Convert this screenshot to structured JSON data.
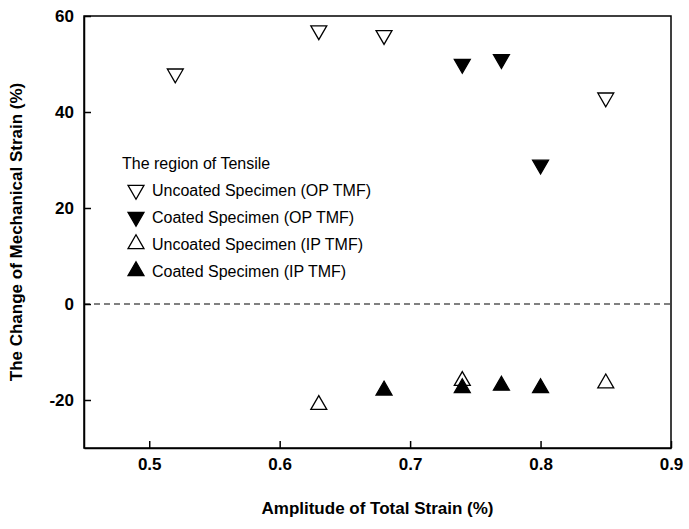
{
  "chart_data": {
    "type": "scatter",
    "x_label": "Amplitude of Total Strain (%)",
    "y_label": "The Change of Mechanical Strain (%)",
    "xlim": [
      0.45,
      0.9
    ],
    "xticks": [
      0.5,
      0.6,
      0.7,
      0.8,
      0.9
    ],
    "ylim": [
      -30,
      60
    ],
    "yticks": [
      -20,
      0,
      20,
      40,
      60
    ],
    "grid": false,
    "legend": "left",
    "legend_title": "The region of Tensile",
    "reference_line": {
      "y": 0,
      "line_style": "dashed"
    },
    "series": [
      {
        "name": "Uncoated Specimen (OP TMF)",
        "color": "#000000",
        "marker": "open-triangle-down",
        "x": [
          0.52,
          0.63,
          0.68,
          0.85
        ],
        "values": [
          48,
          57,
          56,
          43
        ]
      },
      {
        "name": "Coated Specimen (OP TMF)",
        "color": "#000000",
        "marker": "filled-triangle-down",
        "x": [
          0.74,
          0.77,
          0.8
        ],
        "values": [
          50,
          51,
          29
        ]
      },
      {
        "name": "Uncoated Specimen (IP TMF)",
        "color": "#000000",
        "marker": "open-triangle-up",
        "x": [
          0.63,
          0.74,
          0.85
        ],
        "values": [
          -21,
          -16,
          -16.5
        ]
      },
      {
        "name": "Coated Specimen (IP TMF)",
        "color": "#000000",
        "marker": "filled-triangle-up",
        "x": [
          0.68,
          0.74,
          0.77,
          0.8
        ],
        "values": [
          -18,
          -17.5,
          -17,
          -17.5
        ]
      }
    ]
  }
}
